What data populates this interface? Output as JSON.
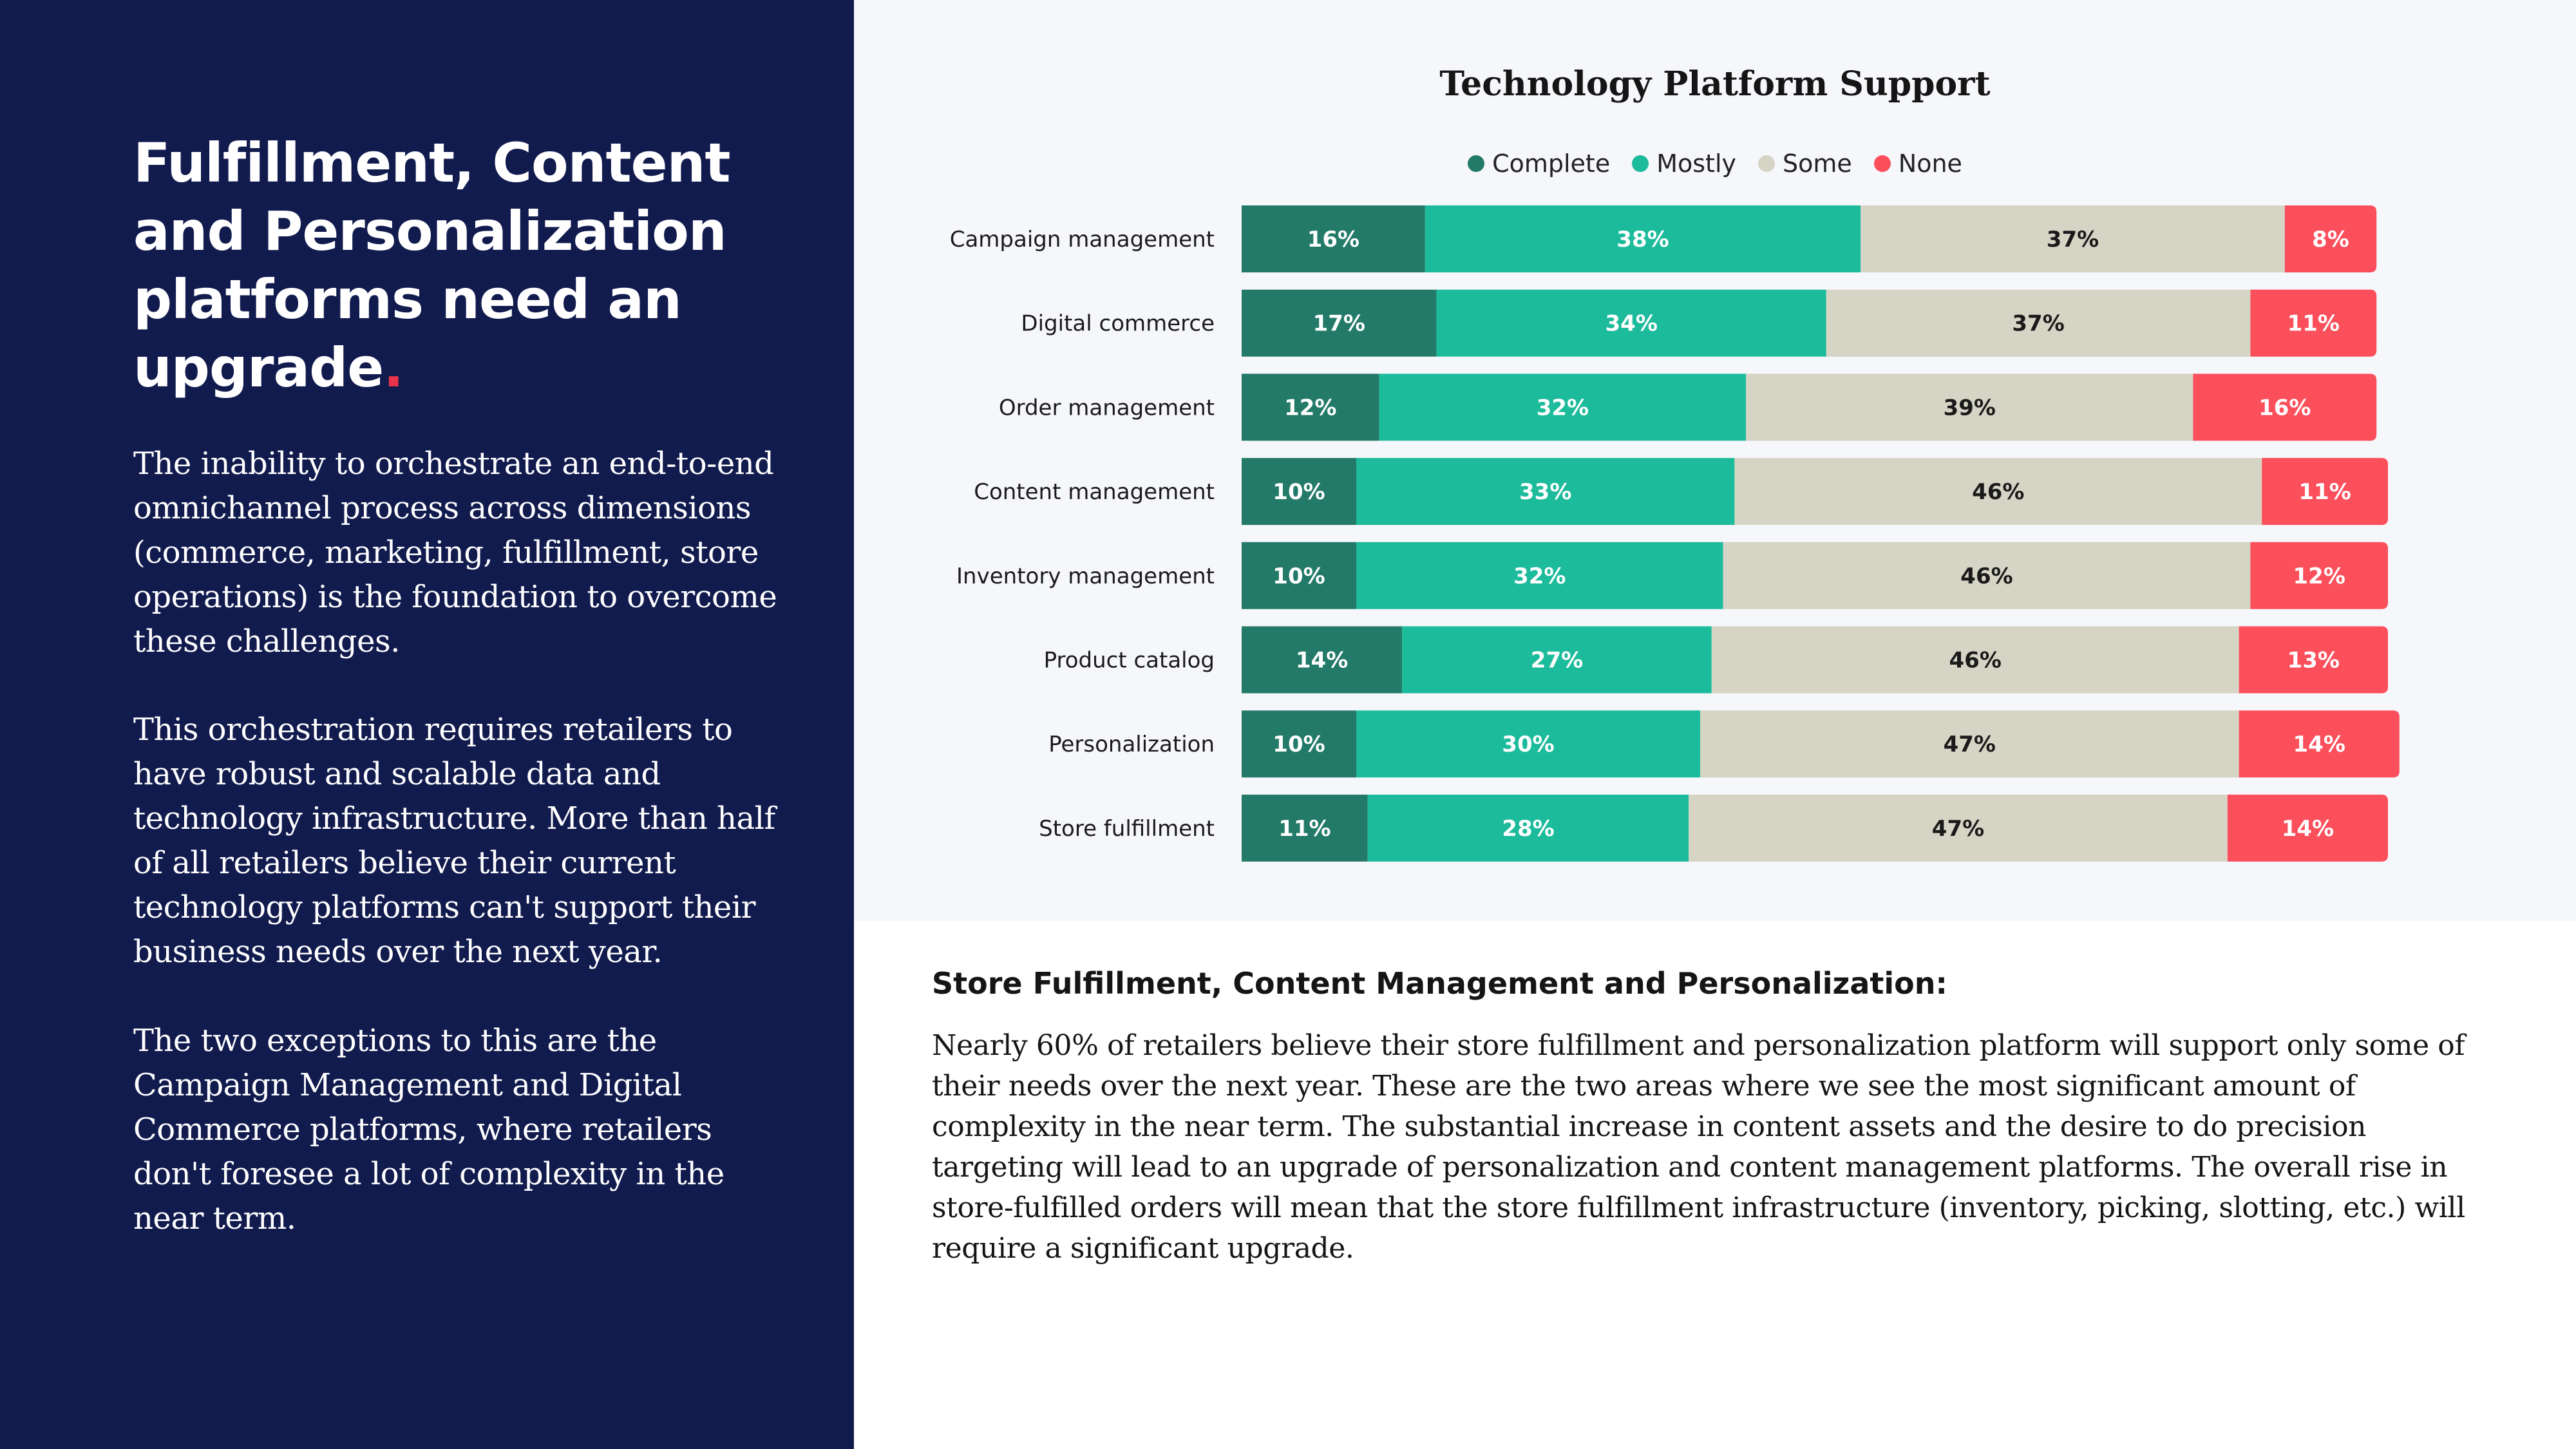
{
  "left": {
    "headline": "Fulfillment, Content and  Personalization platforms need an upgrade",
    "headline_dot": ".",
    "paragraphs": [
      "The inability to orchestrate an end-to-end omnichannel process across dimensions (commerce, marketing, fulfillment, store operations) is the foundation to overcome these challenges.",
      "This orchestration requires retailers to have robust and scalable data and technology infrastructure. More than half of all retailers believe their current technology platforms can't support their business needs over the next year.",
      "The two exceptions to this are the Campaign Management and Digital Commerce platforms, where retailers don't foresee a lot of complexity in the near term."
    ]
  },
  "colors": {
    "left_bg": "#121b4e",
    "accent_dot": "#e8334a",
    "complete": "#237a68",
    "mostly": "#1cbb9b",
    "some": "#d6d4c5",
    "none": "#fb4f5c"
  },
  "chart_data": {
    "type": "bar",
    "orientation": "horizontal",
    "stacked": true,
    "title": "Technology Platform Support",
    "legend_position": "top",
    "categories": [
      "Campaign management",
      "Digital commerce",
      "Order management",
      "Content management",
      "Inventory management",
      "Product catalog",
      "Personalization",
      "Store fulfillment"
    ],
    "series": [
      {
        "name": "Complete",
        "color": "#237a68",
        "values": [
          16,
          17,
          12,
          10,
          10,
          14,
          10,
          11
        ]
      },
      {
        "name": "Mostly",
        "color": "#1cbb9b",
        "values": [
          38,
          34,
          32,
          33,
          32,
          27,
          30,
          28
        ]
      },
      {
        "name": "Some",
        "color": "#d6d4c5",
        "values": [
          37,
          37,
          39,
          46,
          46,
          46,
          47,
          47
        ]
      },
      {
        "name": "None",
        "color": "#fb4f5c",
        "values": [
          8,
          11,
          16,
          11,
          12,
          13,
          14,
          14
        ]
      }
    ],
    "value_suffix": "%",
    "grid": false
  },
  "section": {
    "subheading": "Store Fulfillment, Content Management and Personalization:",
    "body": "Nearly 60% of retailers believe their store fulfillment and personalization platform will support only some of their needs over the next year. These are the two areas where we see the most significant amount of complexity in the near term. The substantial increase in content assets and the desire to do precision targeting will lead to an upgrade of personalization and content management platforms. The overall rise in store-fulfilled orders will mean that the store fulfillment infrastructure (inventory, picking, slotting, etc.) will require a significant upgrade."
  }
}
